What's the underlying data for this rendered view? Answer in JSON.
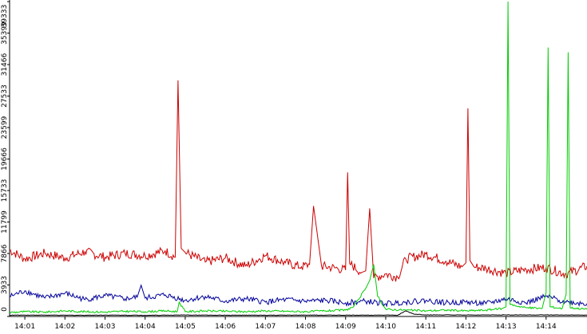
{
  "chart_data": {
    "type": "line",
    "title": "",
    "xlabel": "",
    "ylabel": "",
    "x_range_minutes": [
      0.62,
      15.02
    ],
    "ylim": [
      0,
      39333
    ],
    "yticks": [
      "0",
      "3933",
      "7866",
      "11799",
      "15733",
      "19666",
      "23599",
      "27533",
      "31466",
      "35399",
      "39333"
    ],
    "ytick_values": [
      0,
      3933,
      7866,
      11799,
      15733,
      19666,
      23599,
      27533,
      31466,
      35399,
      39333
    ],
    "xticks": [
      "14:01",
      "14:02",
      "14:03",
      "14:04",
      "14:05",
      "14:06",
      "14:07",
      "14:08",
      "14:09",
      "14:10",
      "14:11",
      "14:12",
      "14:13",
      "14:14"
    ],
    "xtick_values": [
      1,
      2,
      3,
      4,
      5,
      6,
      7,
      8,
      9,
      10,
      11,
      12,
      13,
      14
    ],
    "grid": false,
    "legend": "none",
    "series": [
      {
        "color": "#cc0000",
        "x": [
          0.62,
          1.0,
          1.5,
          2.0,
          2.5,
          3.0,
          3.5,
          4.0,
          4.5,
          4.75,
          4.82,
          4.9,
          5.0,
          5.5,
          6.0,
          6.5,
          7.0,
          7.5,
          7.9,
          8.1,
          8.2,
          8.4,
          8.8,
          9.0,
          9.05,
          9.1,
          9.4,
          9.5,
          9.6,
          9.7,
          10.0,
          10.3,
          10.5,
          11.0,
          11.5,
          11.9,
          12.0,
          12.05,
          12.1,
          12.2,
          12.5,
          13.0,
          13.5,
          14.0,
          14.5,
          15.02
        ],
        "y": [
          8300,
          7200,
          7900,
          7300,
          8100,
          7400,
          7900,
          7600,
          8200,
          7400,
          29500,
          8500,
          8000,
          6800,
          7300,
          6300,
          7600,
          6700,
          6200,
          6500,
          13800,
          6300,
          6000,
          5800,
          18000,
          6600,
          5500,
          5700,
          13500,
          4800,
          5300,
          4900,
          7200,
          7800,
          6900,
          6200,
          6700,
          26000,
          7000,
          6200,
          6000,
          5400,
          5900,
          6100,
          5300,
          6300
        ]
      },
      {
        "color": "#000099",
        "x": [
          0.62,
          1.0,
          1.5,
          2.0,
          2.5,
          3.0,
          3.5,
          3.8,
          3.9,
          4.0,
          4.5,
          5.0,
          5.5,
          6.0,
          6.5,
          7.0,
          7.5,
          8.0,
          8.5,
          9.0,
          9.5,
          10.0,
          10.5,
          11.0,
          11.5,
          12.0,
          12.5,
          13.0,
          13.5,
          14.0,
          14.5,
          15.02
        ],
        "y": [
          2500,
          3200,
          2300,
          2900,
          2100,
          2600,
          2200,
          2400,
          3900,
          2300,
          2700,
          2000,
          2500,
          1900,
          2200,
          1800,
          2100,
          1900,
          2000,
          1700,
          1900,
          1600,
          1800,
          2000,
          1700,
          1800,
          1600,
          2200,
          1700,
          2500,
          1800,
          1600
        ]
      },
      {
        "color": "#00cc00",
        "x": [
          0.62,
          1.0,
          1.5,
          2.0,
          2.5,
          3.0,
          3.5,
          4.0,
          4.5,
          4.8,
          4.85,
          5.0,
          5.5,
          6.0,
          6.5,
          7.0,
          7.5,
          8.0,
          8.5,
          9.0,
          9.2,
          9.5,
          9.6,
          9.7,
          9.8,
          10.0,
          10.5,
          11.0,
          11.5,
          12.0,
          12.5,
          12.9,
          13.0,
          13.05,
          13.1,
          13.5,
          13.9,
          14.0,
          14.05,
          14.1,
          14.4,
          14.5,
          14.55,
          14.6,
          15.02
        ],
        "y": [
          500,
          600,
          550,
          700,
          600,
          550,
          650,
          600,
          700,
          600,
          1800,
          600,
          700,
          650,
          600,
          700,
          650,
          600,
          700,
          800,
          1200,
          3500,
          4500,
          6500,
          2500,
          900,
          800,
          700,
          800,
          700,
          800,
          1000,
          1200,
          39333,
          1500,
          1100,
          1000,
          3000,
          33600,
          1200,
          1000,
          2800,
          33000,
          1100,
          900
        ]
      },
      {
        "color": "#000000",
        "x": [
          0.62,
          1.0,
          2.0,
          3.0,
          4.0,
          5.0,
          6.0,
          7.0,
          8.0,
          9.0,
          10.0,
          10.3,
          10.5,
          10.7,
          11.0,
          12.0,
          13.0,
          14.0,
          15.02
        ],
        "y": [
          150,
          180,
          150,
          170,
          150,
          180,
          160,
          150,
          170,
          160,
          180,
          150,
          700,
          300,
          200,
          180,
          200,
          190,
          170
        ]
      }
    ]
  }
}
